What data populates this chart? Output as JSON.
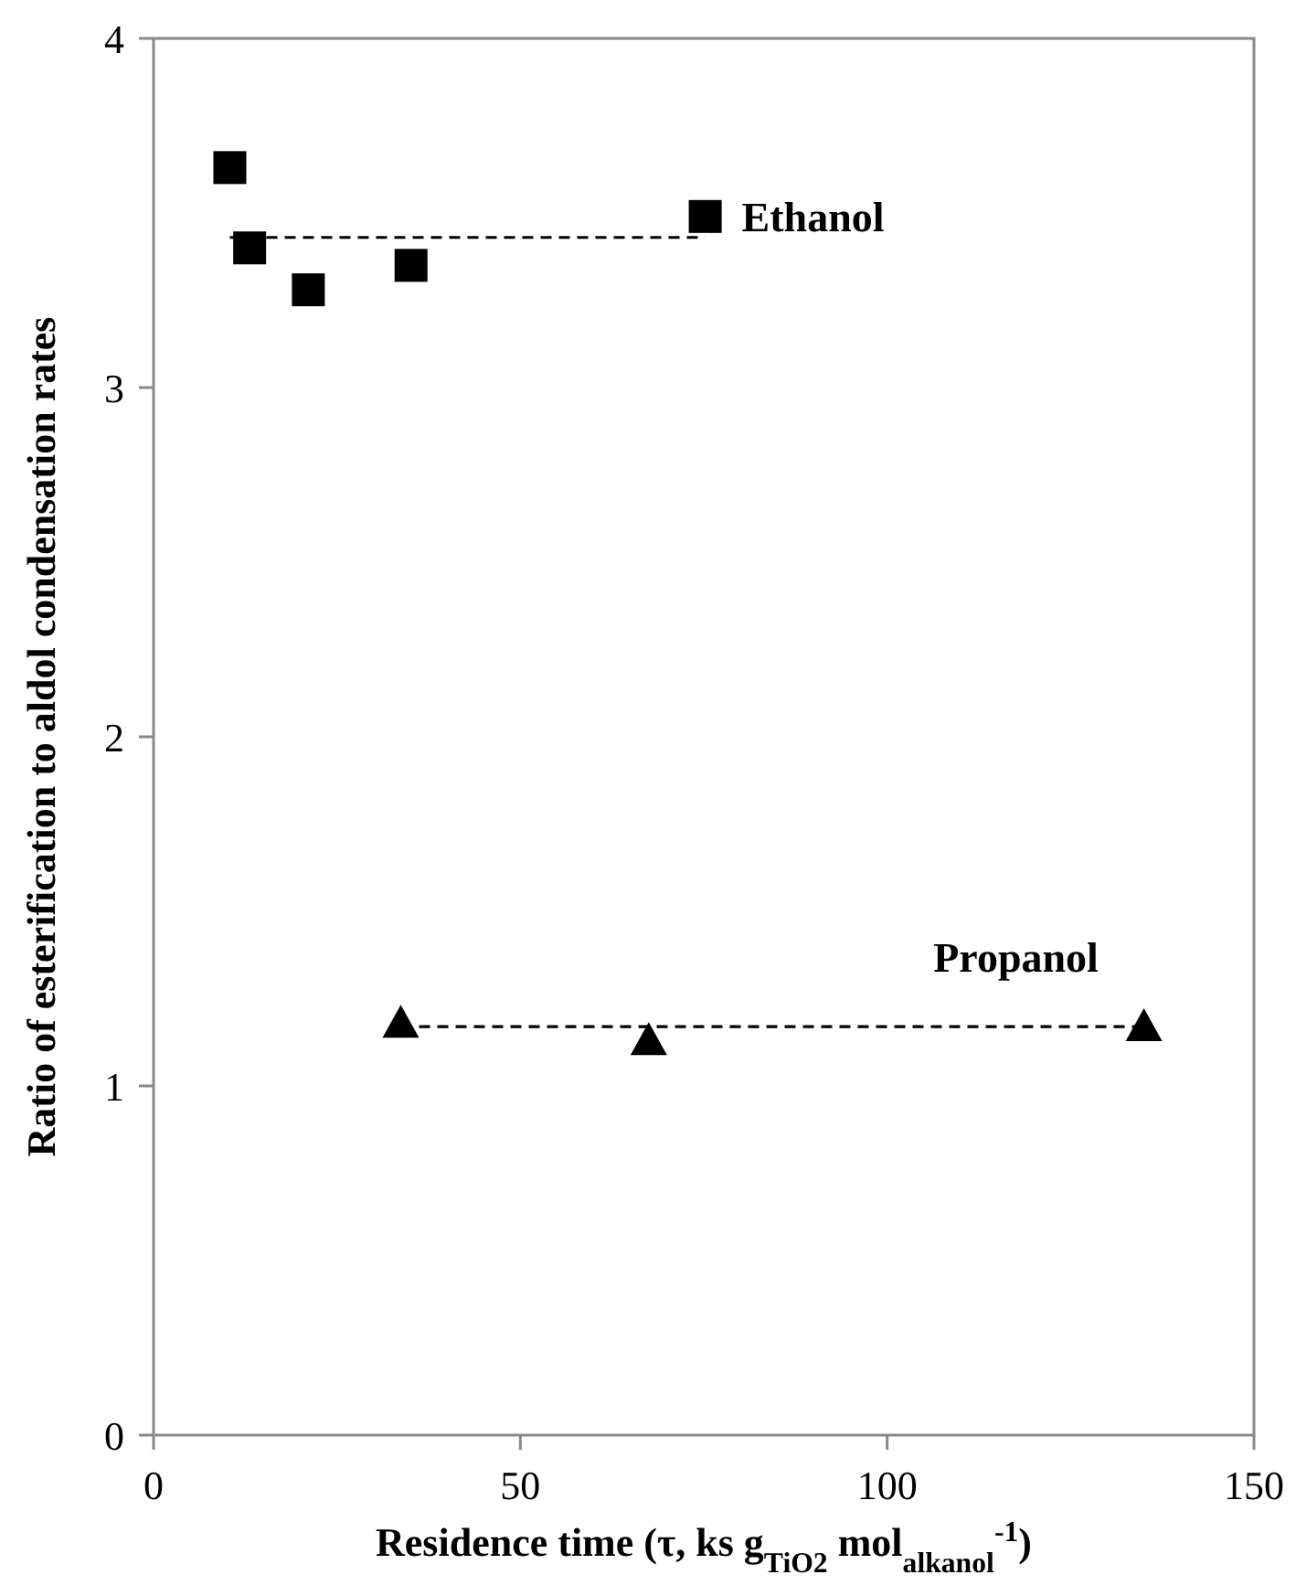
{
  "chart_data": {
    "type": "scatter",
    "xlabel": "Residence time (τ, ks g$_{TiO2}$ mol$_{alkanol}$$^{-1}$)",
    "ylabel": "Ratio of esterification to aldol condensation rates",
    "xlim": [
      0,
      150
    ],
    "xticks": [
      0,
      50,
      100,
      150
    ],
    "ylim": [
      0,
      4
    ],
    "yticks": [
      0,
      1,
      2,
      3,
      4
    ],
    "grid": false,
    "series": [
      {
        "name": "Ethanol",
        "color": "#000000",
        "marker": "square",
        "x": [
          10.4,
          13.1,
          21.1,
          35.1,
          75.2
        ],
        "values": [
          3.63,
          3.4,
          3.28,
          3.35,
          3.49
        ]
      },
      {
        "name": "Propanol",
        "color": "#000000",
        "marker": "triangle",
        "x": [
          33.7,
          67.5,
          135
        ],
        "values": [
          1.18,
          1.13,
          1.17
        ]
      },
      {
        "type": "line",
        "color": "#000000",
        "line_style": "dashed",
        "marker": "none",
        "x": [
          10.4,
          75.2
        ],
        "values": [
          3.43,
          3.43
        ]
      },
      {
        "type": "line",
        "color": "#000000",
        "line_style": "dashed",
        "marker": "none",
        "x": [
          33.7,
          135
        ],
        "values": [
          1.17,
          1.17
        ]
      }
    ]
  }
}
